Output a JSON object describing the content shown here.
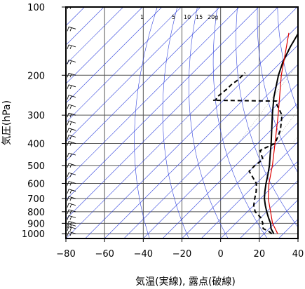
{
  "chart_data": {
    "type": "skew-t",
    "xlabel": "気温(実線), 露点(破線)",
    "ylabel": "気圧(hPa)",
    "x_ticks": [
      -80,
      -60,
      -40,
      -20,
      0,
      20,
      40
    ],
    "y_ticks": [
      100,
      200,
      300,
      400,
      500,
      600,
      700,
      800,
      900,
      1000
    ],
    "xlim": [
      -80,
      40
    ],
    "ylim": [
      1050,
      100
    ],
    "y_scale": "log",
    "mixing_ratio_labels": [
      "1",
      "5",
      "10",
      "15",
      "20g"
    ],
    "series": [
      {
        "role": "temperature",
        "style": "solid",
        "color": "#000000",
        "points": [
          [
            1000,
            25
          ],
          [
            975,
            23
          ],
          [
            950,
            21
          ],
          [
            925,
            19.5
          ],
          [
            900,
            18
          ],
          [
            875,
            16
          ],
          [
            850,
            14
          ],
          [
            800,
            10
          ],
          [
            750,
            6
          ],
          [
            700,
            2
          ],
          [
            650,
            -1.5
          ],
          [
            600,
            -5
          ],
          [
            550,
            -8.5
          ],
          [
            500,
            -12.5
          ],
          [
            450,
            -17.5
          ],
          [
            400,
            -23
          ],
          [
            350,
            -29.5
          ],
          [
            300,
            -37
          ],
          [
            250,
            -45.5
          ],
          [
            200,
            -54.5
          ],
          [
            175,
            -59
          ],
          [
            150,
            -63
          ],
          [
            130,
            -66
          ],
          [
            120,
            -67
          ],
          [
            110,
            -68
          ],
          [
            100,
            -68
          ]
        ]
      },
      {
        "role": "dewpoint",
        "style": "dashed",
        "color": "#000000",
        "points": [
          [
            1000,
            24
          ],
          [
            975,
            21
          ],
          [
            950,
            17
          ],
          [
            925,
            15
          ],
          [
            900,
            14
          ],
          [
            875,
            12
          ],
          [
            850,
            10
          ],
          [
            800,
            4
          ],
          [
            750,
            0
          ],
          [
            700,
            -3
          ],
          [
            650,
            -6
          ],
          [
            600,
            -10
          ],
          [
            550,
            -17
          ],
          [
            530,
            -20
          ],
          [
            500,
            -20
          ],
          [
            470,
            -19
          ],
          [
            450,
            -22
          ],
          [
            430,
            -25
          ],
          [
            420,
            -24
          ],
          [
            400,
            -21
          ],
          [
            350,
            -25
          ],
          [
            300,
            -32
          ],
          [
            270,
            -40
          ],
          [
            260,
            -42
          ],
          [
            258,
            -75
          ],
          [
            257,
            -74
          ],
          [
            250,
            -75
          ],
          [
            230,
            -74
          ],
          [
            220,
            -74
          ],
          [
            210,
            -73
          ],
          [
            200,
            -73
          ],
          [
            195,
            -73
          ]
        ]
      },
      {
        "role": "reference",
        "style": "solid",
        "color": "#dd0000",
        "points": [
          [
            1000,
            27
          ],
          [
            900,
            19
          ],
          [
            800,
            12
          ],
          [
            700,
            4
          ],
          [
            600,
            -3.5
          ],
          [
            500,
            -11
          ],
          [
            400,
            -21
          ],
          [
            300,
            -34
          ],
          [
            200,
            -53
          ],
          [
            150,
            -65
          ],
          [
            130,
            -71
          ]
        ]
      }
    ],
    "wind_barbs_levels": [
      1000,
      950,
      925,
      900,
      850,
      800,
      750,
      700,
      650,
      600,
      550,
      500,
      450,
      400,
      375,
      350,
      325,
      300,
      275,
      250,
      225,
      200,
      175,
      150,
      125,
      100
    ],
    "grid": true
  }
}
